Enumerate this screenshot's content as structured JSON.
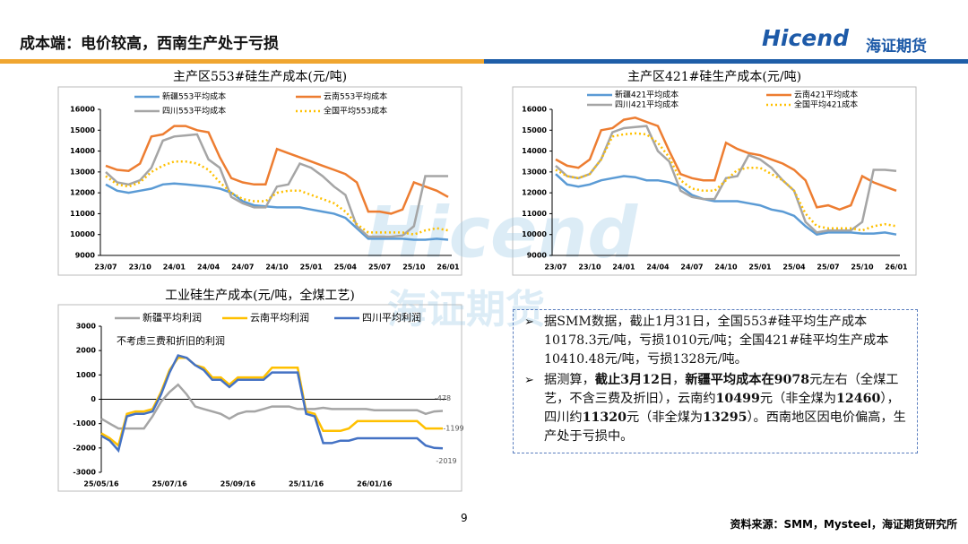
{
  "header": {
    "title": "成本端：电价较高，西南生产处于亏损"
  },
  "logo": {
    "brand": "Hicend",
    "cn": "海证期货"
  },
  "chart_data": [
    {
      "type": "line",
      "title": "主产区553#硅生产成本(元/吨)",
      "categories": [
        "23/07",
        null,
        null,
        "23/10",
        null,
        null,
        "24/01",
        null,
        null,
        "24/04",
        null,
        null,
        "24/07",
        null,
        null,
        "24/10",
        null,
        null,
        "25/01",
        null,
        null,
        "25/04",
        null,
        null,
        "25/07",
        null,
        null,
        "25/10",
        null,
        null,
        "26/01"
      ],
      "ylim": [
        9000,
        16000
      ],
      "yticks": [
        9000,
        10000,
        11000,
        12000,
        13000,
        14000,
        15000,
        16000
      ],
      "series": [
        {
          "name": "新疆553平均成本",
          "color": "#5b9bd5",
          "values": [
            12400,
            12100,
            12000,
            12100,
            12200,
            12400,
            12450,
            12400,
            12350,
            12300,
            12200,
            12000,
            11600,
            11400,
            11350,
            11300,
            11300,
            11300,
            11200,
            11100,
            11000,
            10800,
            10300,
            9800,
            9800,
            9800,
            9800,
            9750,
            9750,
            9800,
            9750
          ]
        },
        {
          "name": "云南553平均成本",
          "color": "#ed7d31",
          "values": [
            13300,
            13100,
            13050,
            13400,
            14700,
            14800,
            15200,
            15200,
            15000,
            14900,
            13700,
            12700,
            12500,
            12400,
            12400,
            14100,
            13900,
            13700,
            13500,
            13300,
            13100,
            12900,
            12500,
            11100,
            11100,
            11000,
            11200,
            12500,
            12300,
            12100,
            11800
          ]
        },
        {
          "name": "四川553平均成本",
          "color": "#a5a5a5",
          "values": [
            13000,
            12500,
            12400,
            12600,
            13200,
            14500,
            14700,
            14750,
            14800,
            13600,
            13200,
            11800,
            11500,
            11300,
            11300,
            12300,
            12400,
            13400,
            13200,
            12800,
            12300,
            11900,
            10400,
            9900,
            9900,
            9900,
            9950,
            10400,
            12800,
            12800,
            12800
          ]
        },
        {
          "name": "全国平均553成本",
          "color": "#ffc000",
          "dashed": true,
          "values": [
            12800,
            12400,
            12300,
            12500,
            13000,
            13300,
            13500,
            13500,
            13400,
            13100,
            12500,
            12000,
            11700,
            11600,
            11600,
            12000,
            12100,
            12100,
            11900,
            11700,
            11500,
            11100,
            10500,
            10100,
            10100,
            10100,
            10100,
            10000,
            10200,
            10300,
            10200
          ]
        }
      ]
    },
    {
      "type": "line",
      "title": "主产区421#硅生产成本(元/吨)",
      "categories": [
        "23/07",
        null,
        null,
        "23/10",
        null,
        null,
        "24/01",
        null,
        null,
        "24/04",
        null,
        null,
        "24/07",
        null,
        null,
        "24/10",
        null,
        null,
        "25/01",
        null,
        null,
        "25/04",
        null,
        null,
        "25/07",
        null,
        null,
        "25/10",
        null,
        null,
        "26/01"
      ],
      "ylim": [
        9000,
        16000
      ],
      "yticks": [
        9000,
        10000,
        11000,
        12000,
        13000,
        14000,
        15000,
        16000
      ],
      "series": [
        {
          "name": "新疆421平均成本",
          "color": "#5b9bd5",
          "values": [
            12900,
            12400,
            12300,
            12400,
            12600,
            12700,
            12800,
            12750,
            12600,
            12600,
            12500,
            12300,
            11900,
            11700,
            11600,
            11600,
            11600,
            11500,
            11400,
            11200,
            11100,
            10900,
            10400,
            10000,
            10100,
            10100,
            10100,
            10050,
            10050,
            10100,
            10000
          ]
        },
        {
          "name": "云南421平均成本",
          "color": "#ed7d31",
          "values": [
            13600,
            13300,
            13200,
            13600,
            15000,
            15100,
            15500,
            15600,
            15400,
            15200,
            14000,
            12900,
            12700,
            12600,
            12600,
            14400,
            14100,
            13900,
            13800,
            13600,
            13400,
            13100,
            12600,
            11300,
            11400,
            11200,
            11400,
            12800,
            12500,
            12300,
            12100
          ]
        },
        {
          "name": "四川421平均成本",
          "color": "#a5a5a5",
          "values": [
            13300,
            12800,
            12700,
            12900,
            13600,
            14900,
            15100,
            15150,
            15200,
            14000,
            13500,
            12100,
            11800,
            11700,
            11700,
            12700,
            12800,
            13800,
            13600,
            13200,
            12600,
            12100,
            10600,
            10100,
            10200,
            10200,
            10200,
            10600,
            13100,
            13100,
            13050
          ]
        },
        {
          "name": "全国平均421成本",
          "color": "#ffc000",
          "dashed": true,
          "values": [
            13100,
            12800,
            12700,
            12900,
            13600,
            14700,
            14800,
            14850,
            14800,
            14400,
            13700,
            12600,
            12200,
            12100,
            12100,
            12600,
            13100,
            13200,
            13200,
            12900,
            12600,
            12100,
            11000,
            10400,
            10300,
            10300,
            10300,
            10200,
            10400,
            10500,
            10400
          ]
        }
      ]
    },
    {
      "type": "line",
      "title": "工业硅生产成本(元/吨，全煤工艺)",
      "annotation": "不考虑三费和折旧的利润",
      "categories": [
        "25/05/16",
        null,
        null,
        null,
        null,
        null,
        null,
        null,
        "25/07/16",
        null,
        null,
        null,
        null,
        null,
        null,
        null,
        "25/09/16",
        null,
        null,
        null,
        null,
        null,
        null,
        null,
        "25/11/16",
        null,
        null,
        null,
        null,
        null,
        null,
        null,
        "26/01/16",
        null,
        null,
        null,
        null,
        null,
        null,
        null,
        null
      ],
      "ylim": [
        -3000,
        3000
      ],
      "yticks": [
        -3000,
        -2000,
        -1000,
        0,
        1000,
        2000,
        3000
      ],
      "series": [
        {
          "name": "新疆平均利润",
          "color": "#a5a5a5",
          "values": [
            -800,
            -1000,
            -1200,
            -1200,
            -1200,
            -1200,
            -700,
            -100,
            300,
            600,
            200,
            -300,
            -400,
            -500,
            -600,
            -800,
            -600,
            -500,
            -500,
            -400,
            -300,
            -300,
            -300,
            -400,
            -400,
            -400,
            -350,
            -400,
            -400,
            -400,
            -400,
            -400,
            -450,
            -450,
            -450,
            -450,
            -450,
            -450,
            -600,
            -500,
            -478
          ],
          "value_labels": [
            null,
            null,
            null,
            null,
            null,
            null,
            null,
            null,
            null,
            null,
            null,
            null,
            null,
            null,
            null,
            null,
            null,
            null,
            null,
            null,
            null,
            null,
            null,
            null,
            null,
            null,
            null,
            null,
            null,
            null,
            null,
            null,
            null,
            null,
            null,
            null,
            null,
            null,
            null,
            null,
            "-478"
          ]
        },
        {
          "name": "云南平均利润",
          "color": "#ffc000",
          "values": [
            -1400,
            -1600,
            -1900,
            -600,
            -500,
            -500,
            -400,
            300,
            1200,
            1700,
            1700,
            1400,
            1300,
            900,
            900,
            600,
            900,
            900,
            900,
            900,
            1300,
            1300,
            1300,
            1300,
            -500,
            -600,
            -1300,
            -1300,
            -1300,
            -1200,
            -900,
            -900,
            -900,
            -900,
            -900,
            -900,
            -900,
            -900,
            -1200,
            -1199,
            -1199
          ],
          "value_labels": [
            null,
            null,
            null,
            null,
            null,
            null,
            null,
            null,
            null,
            null,
            null,
            null,
            null,
            null,
            null,
            null,
            null,
            null,
            null,
            null,
            null,
            null,
            null,
            null,
            null,
            null,
            null,
            null,
            null,
            null,
            null,
            null,
            null,
            null,
            null,
            null,
            null,
            null,
            null,
            null,
            "-1199"
          ]
        },
        {
          "name": "四川平均利润",
          "color": "#4472c4",
          "values": [
            -1500,
            -1700,
            -2100,
            -700,
            -600,
            -600,
            -500,
            200,
            1100,
            1800,
            1700,
            1400,
            1200,
            800,
            800,
            500,
            800,
            800,
            800,
            800,
            1100,
            1100,
            1100,
            1100,
            -600,
            -700,
            -1800,
            -1800,
            -1700,
            -1700,
            -1600,
            -1600,
            -1600,
            -1600,
            -1600,
            -1600,
            -1600,
            -1600,
            -1900,
            -2000,
            -2019
          ],
          "value_labels": [
            null,
            null,
            null,
            null,
            null,
            null,
            null,
            null,
            null,
            null,
            null,
            null,
            null,
            null,
            null,
            null,
            null,
            null,
            null,
            null,
            null,
            null,
            null,
            null,
            null,
            null,
            null,
            null,
            null,
            null,
            null,
            null,
            null,
            null,
            null,
            null,
            null,
            null,
            null,
            null,
            "-2019"
          ]
        }
      ]
    }
  ],
  "bullets": [
    [
      {
        "text": "据SMM数据，截止1月31日，全国553#硅平均生产成本10178.3元/吨，亏损1010元/吨；全国421#硅平均生产成本10410.48元/吨，亏损1328元/吨。",
        "bold": false
      }
    ],
    [
      {
        "text": "据测算，",
        "bold": false
      },
      {
        "text": "截止3月12日",
        "bold": true
      },
      {
        "text": "，",
        "bold": false
      },
      {
        "text": "新疆平均成本在9078",
        "bold": true
      },
      {
        "text": "元左右（全煤工艺，不含三费及折旧），云南约",
        "bold": false
      },
      {
        "text": "10499",
        "bold": true
      },
      {
        "text": "元（非全煤为",
        "bold": false
      },
      {
        "text": "12460",
        "bold": true
      },
      {
        "text": "），四川约",
        "bold": false
      },
      {
        "text": "11320",
        "bold": true
      },
      {
        "text": "元（非全煤为",
        "bold": false
      },
      {
        "text": "13295",
        "bold": true
      },
      {
        "text": "）。西南地区因电价偏高，生产处于亏损中。",
        "bold": false
      }
    ]
  ],
  "footer": {
    "page": "9",
    "source": "资料来源：SMM，Mysteel，海证期货研究所"
  }
}
